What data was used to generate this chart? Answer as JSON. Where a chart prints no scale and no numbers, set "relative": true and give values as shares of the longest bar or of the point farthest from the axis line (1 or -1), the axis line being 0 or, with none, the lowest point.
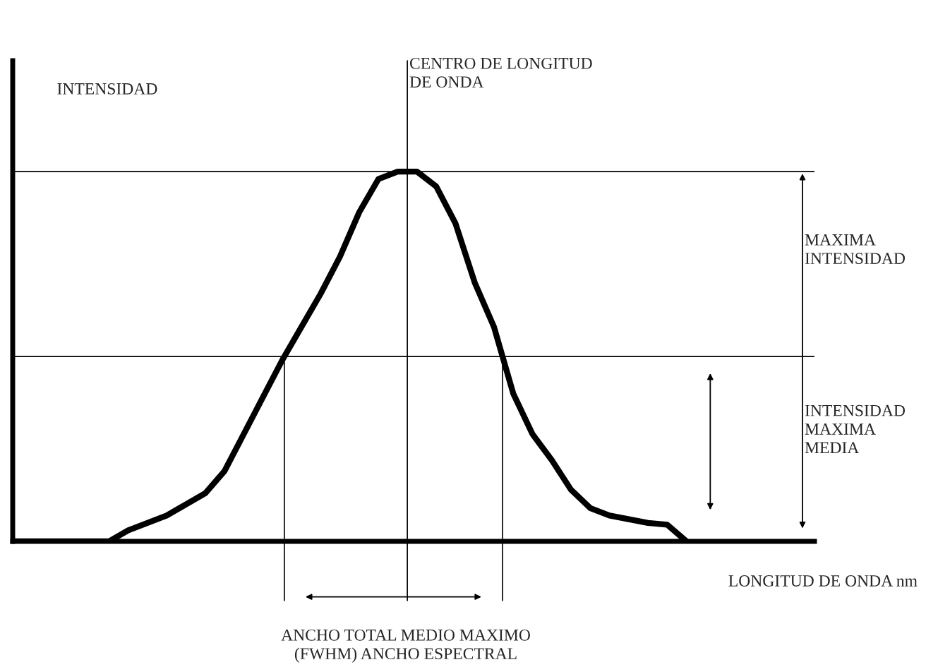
{
  "chart_data": {
    "type": "line",
    "relative": true,
    "marker": "none",
    "line_style": "solid",
    "ylabel": "INTENSIDAD",
    "xlabel": "LONGITUD DE ONDA nm",
    "categories": [
      null,
      null,
      null,
      null,
      null,
      null,
      null,
      null,
      null,
      null,
      null,
      null,
      null,
      null,
      null,
      null,
      null,
      null,
      null,
      null,
      null,
      null,
      null,
      null,
      null,
      null,
      null,
      null,
      null,
      null,
      null,
      null,
      null,
      null,
      null,
      null
    ],
    "series": [
      {
        "color": "#000000",
        "values": [
          0,
          0,
          0,
          0,
          0,
          0,
          0.03,
          0.05,
          0.07,
          0.1,
          0.13,
          0.19,
          0.29,
          0.39,
          0.49,
          0.58,
          0.67,
          0.77,
          0.89,
          0.98,
          1,
          1,
          0.96,
          0.86,
          0.7,
          0.58,
          0.4,
          0.29,
          0.22,
          0.14,
          0.09,
          0.07,
          0.06,
          0.05,
          0.045,
          0
        ]
      }
    ],
    "ref_lines": [
      {
        "axis": "y",
        "value": 1,
        "color": "#000000"
      },
      {
        "axis": "y",
        "value": 0.5,
        "color": "#000000"
      }
    ],
    "annotations": [
      "CENTRO DE LONGITUD\nDE ONDA",
      "MAXIMA\nINTENSIDAD",
      "INTENSIDAD\nMAXIMA\nMEDIA",
      "ANCHO TOTAL MEDIO MAXIMO\n(FWHM) ANCHO ESPECTRAL"
    ]
  }
}
